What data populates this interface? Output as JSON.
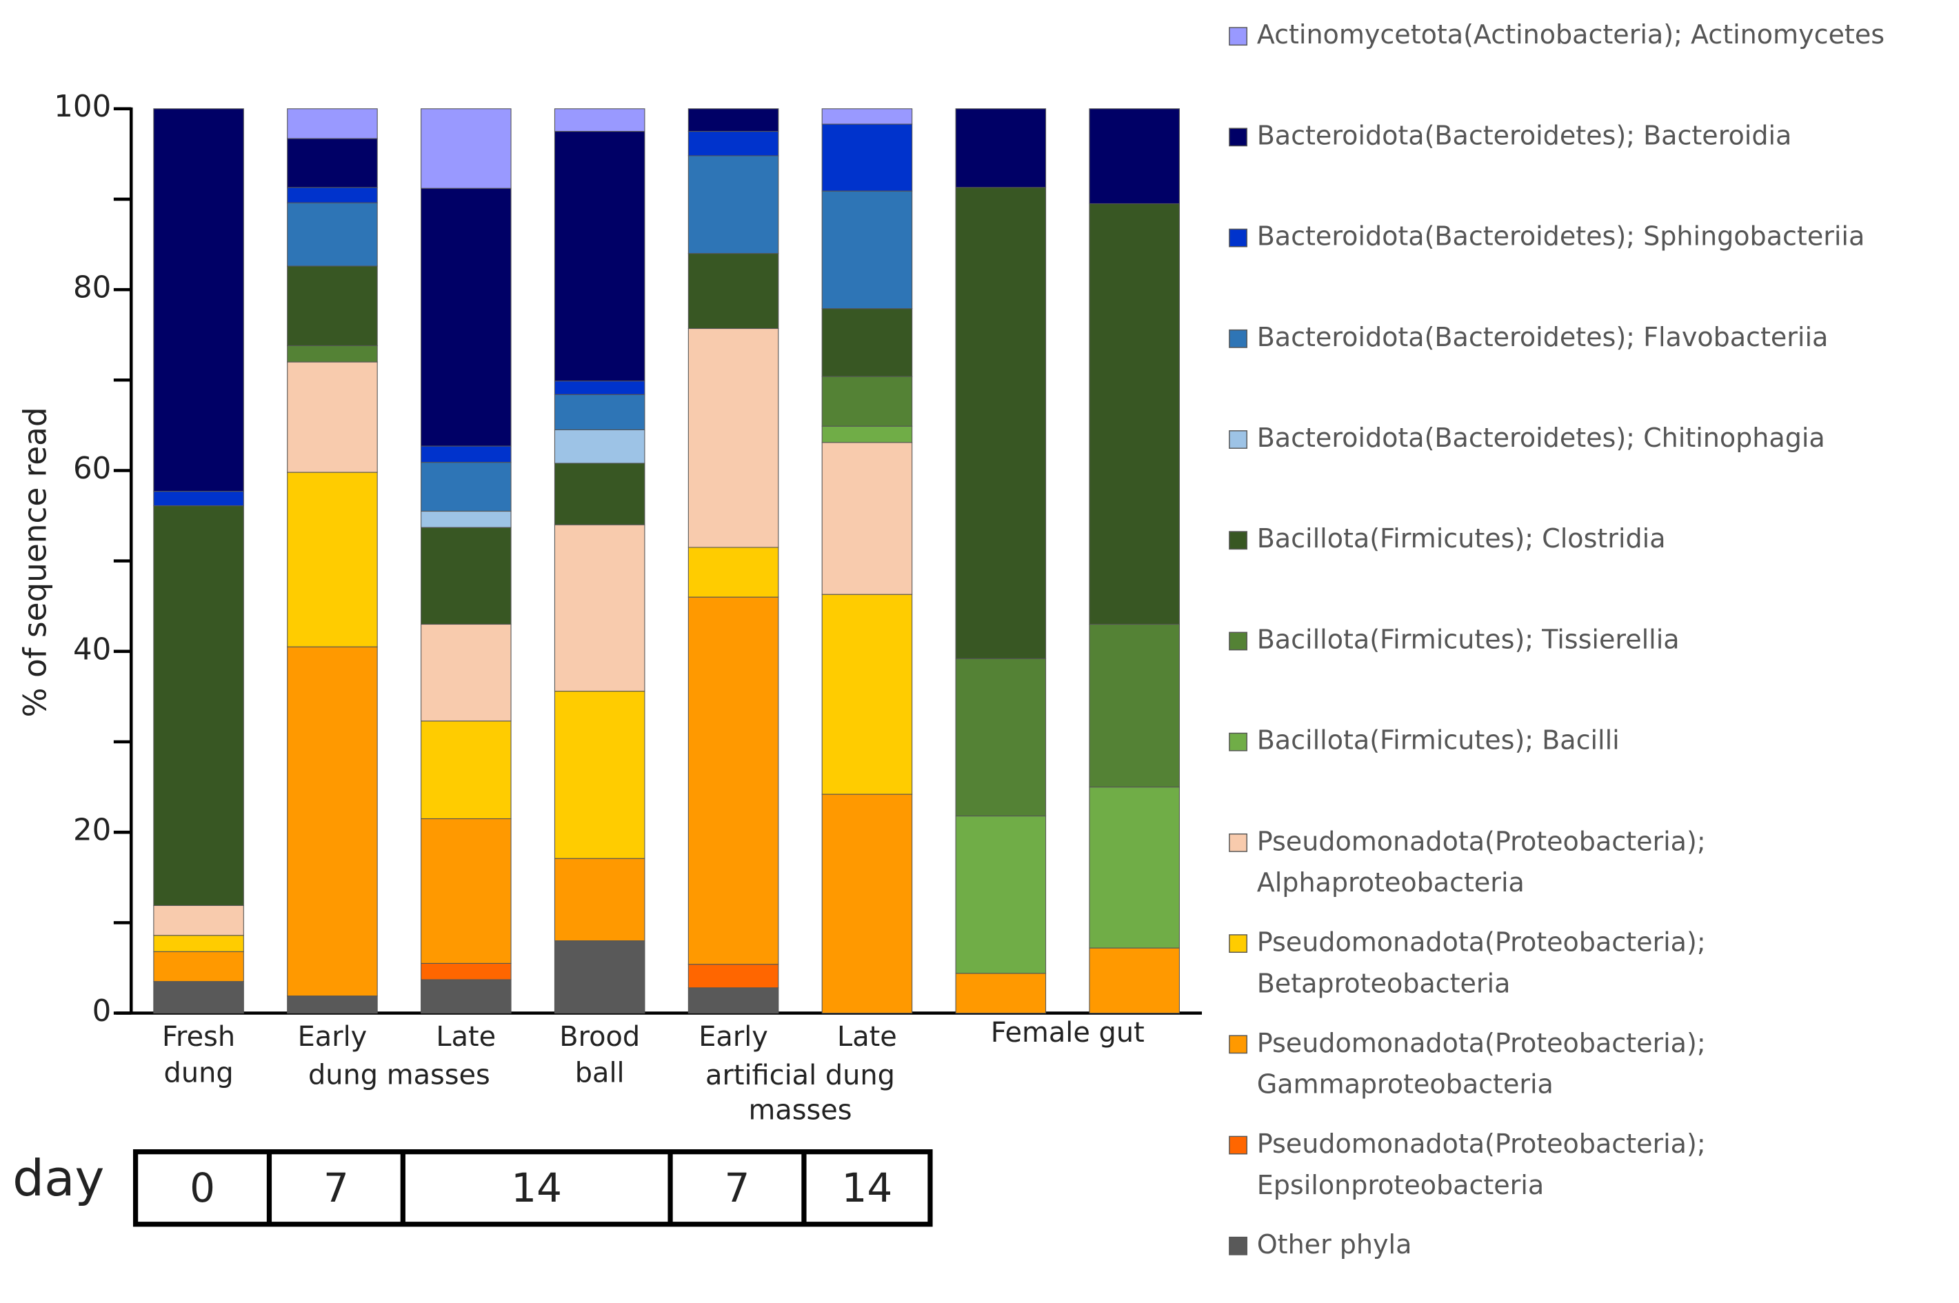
{
  "chart_data": {
    "type": "stacked_bar",
    "y_label": "% of sequence read",
    "ylim": [
      0,
      100
    ],
    "yticks": [
      0,
      20,
      40,
      60,
      80,
      100
    ],
    "yminorticks": [
      10,
      30,
      50,
      70,
      90
    ],
    "categories": [
      "Fresh dung",
      "Early",
      "Late",
      "Brood ball",
      "Early",
      "Late",
      null,
      null
    ],
    "group_labels": [
      {
        "text": "dung masses",
        "from": 1,
        "to": 2
      },
      {
        "text": "artificial dung masses",
        "from": 4,
        "to": 5
      },
      {
        "text": "Female gut",
        "from": 6,
        "to": 7
      }
    ],
    "day_row": {
      "label": "day",
      "cells": [
        {
          "text": "0",
          "from": 0,
          "to": 0
        },
        {
          "text": "7",
          "from": 1,
          "to": 1
        },
        {
          "text": "14",
          "from": 2,
          "to": 3
        },
        {
          "text": "7",
          "from": 4,
          "to": 4
        },
        {
          "text": "14",
          "from": 5,
          "to": 5
        }
      ]
    },
    "series": [
      {
        "name": "Actinomycetota(Actinobacteria); Actinomycetes",
        "color": "#9999ff",
        "values": [
          0,
          3.3,
          8.8,
          2.5,
          0,
          1.7,
          0,
          0
        ]
      },
      {
        "name": "Bacteroidota(Bacteroidetes); Bacteroidia",
        "color": "#000066",
        "values": [
          42.3,
          5.4,
          28.5,
          27.6,
          2.5,
          0,
          8.7,
          10.5
        ]
      },
      {
        "name": "Bacteroidota(Bacteroidetes); Sphingobacteriia",
        "color": "#0033cc",
        "values": [
          1.6,
          1.7,
          1.8,
          1.5,
          2.7,
          7.4,
          0,
          0
        ]
      },
      {
        "name": "Bacteroidota(Bacteroidetes); Flavobacteriia",
        "color": "#2e75b6",
        "values": [
          0,
          7,
          5.4,
          3.9,
          10.8,
          13,
          0,
          0
        ]
      },
      {
        "name": "Bacteroidota(Bacteroidetes); Chitinophagia",
        "color": "#9dc3e6",
        "values": [
          0,
          0,
          1.8,
          3.7,
          0,
          0,
          0,
          0
        ]
      },
      {
        "name": "Bacillota(Firmicutes); Clostridia",
        "color": "#385723",
        "values": [
          44.2,
          8.8,
          10.7,
          6.8,
          8.3,
          7.5,
          52.1,
          46.5
        ]
      },
      {
        "name": "Bacillota(Firmicutes); Tissierellia",
        "color": "#548235",
        "values": [
          0,
          1.8,
          0,
          0,
          0,
          5.5,
          17.4,
          18
        ]
      },
      {
        "name": "Bacillota(Firmicutes); Bacilli",
        "color": "#70ad47",
        "values": [
          0,
          0,
          0,
          0,
          0,
          1.8,
          17.4,
          17.8
        ]
      },
      {
        "name": "Pseudomonadota(Proteobacteria); Alphaproteobacteria",
        "color": "#f8cbad",
        "values": [
          3.3,
          12.2,
          10.7,
          18.4,
          24.2,
          16.8,
          0,
          0
        ]
      },
      {
        "name": "Pseudomonadota(Proteobacteria); Betaproteobacteria",
        "color": "#ffcc00",
        "values": [
          1.8,
          19.3,
          10.8,
          18.5,
          5.5,
          22.1,
          0,
          0
        ]
      },
      {
        "name": "Pseudomonadota(Proteobacteria); Gammaproteobacteria",
        "color": "#ff9900",
        "values": [
          3.3,
          38.6,
          16,
          9.1,
          40.6,
          24.2,
          4.4,
          7.2
        ]
      },
      {
        "name": "Pseudomonadota(Proteobacteria); Epsilonproteobacteria",
        "color": "#ff6600",
        "values": [
          0,
          0,
          1.8,
          0,
          2.6,
          0,
          0,
          0
        ]
      },
      {
        "name": "Other phyla",
        "color": "#595959",
        "values": [
          3.5,
          1.9,
          3.7,
          8,
          2.8,
          0,
          0,
          0
        ]
      }
    ]
  }
}
